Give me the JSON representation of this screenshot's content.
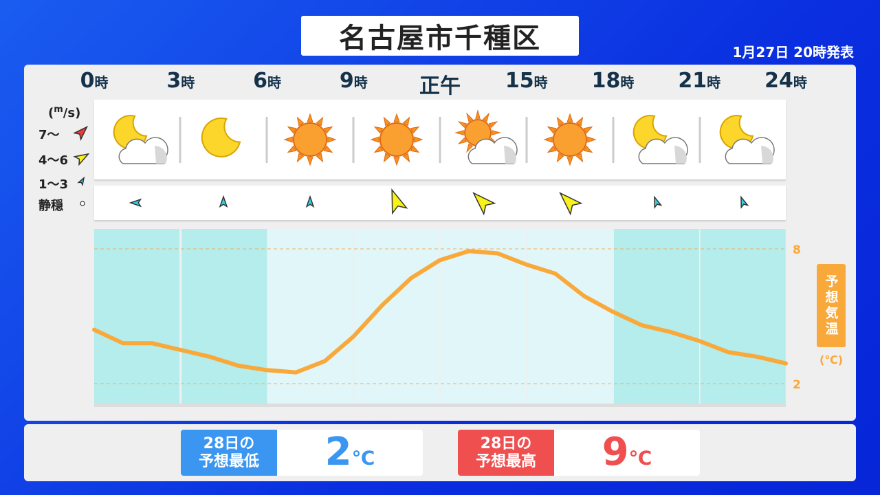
{
  "header": {
    "title": "名古屋市千種区",
    "issued": "1月27日 20時発表"
  },
  "hours": [
    {
      "n": "0",
      "s": "時"
    },
    {
      "n": "3",
      "s": "時"
    },
    {
      "n": "6",
      "s": "時"
    },
    {
      "n": "9",
      "s": "時"
    },
    {
      "n": "正午",
      "s": ""
    },
    {
      "n": "15",
      "s": "時"
    },
    {
      "n": "18",
      "s": "時"
    },
    {
      "n": "21",
      "s": "時"
    },
    {
      "n": "24",
      "s": "時"
    }
  ],
  "weather_icons": [
    "moon-cloud",
    "moon",
    "sun",
    "sun",
    "sun-cloud",
    "sun",
    "moon-cloud",
    "moon-cloud"
  ],
  "wind_legend": {
    "unit": "(m/s)",
    "items": [
      {
        "label": "7〜",
        "color": "#f03a3a"
      },
      {
        "label": "4〜6",
        "color": "#f8f21a"
      },
      {
        "label": "1〜3",
        "color": "#29d2e6"
      },
      {
        "label": "静穏",
        "color": "#ffffff"
      }
    ]
  },
  "wind": [
    {
      "level": "1〜3",
      "dir": "west"
    },
    {
      "level": "1〜3",
      "dir": "north"
    },
    {
      "level": "1〜3",
      "dir": "north"
    },
    {
      "level": "4〜6",
      "dir": "north-northwest"
    },
    {
      "level": "4〜6",
      "dir": "northwest"
    },
    {
      "level": "4〜6",
      "dir": "northwest"
    },
    {
      "level": "1〜3",
      "dir": "north-northwest"
    },
    {
      "level": "1〜3",
      "dir": "north-northwest"
    }
  ],
  "temperature": {
    "label": "予想気温",
    "unit": "(℃)",
    "color": "#f9a83a"
  },
  "chart_data": {
    "type": "line",
    "x_label": "時",
    "x": [
      0,
      1,
      2,
      3,
      4,
      5,
      6,
      7,
      8,
      9,
      10,
      11,
      12,
      13,
      14,
      15,
      16,
      17,
      18,
      19,
      20,
      21,
      22,
      23,
      24
    ],
    "y": [
      4.4,
      3.8,
      3.8,
      3.5,
      3.2,
      2.8,
      2.6,
      2.5,
      3.0,
      4.1,
      5.5,
      6.7,
      7.5,
      7.9,
      7.8,
      7.3,
      6.9,
      5.9,
      5.2,
      4.6,
      4.3,
      3.9,
      3.4,
      3.2,
      2.9
    ],
    "y_ticks": [
      2,
      8
    ],
    "xlim": [
      0,
      24
    ],
    "grid": "dashed at ticks"
  },
  "forecast": {
    "low": {
      "label1": "28日の",
      "label2": "予想最低",
      "value": "2",
      "unit": "℃",
      "color": "#3a96f0"
    },
    "high": {
      "label1": "28日の",
      "label2": "予想最高",
      "value": "9",
      "unit": "℃",
      "color": "#ef4f4f"
    }
  }
}
